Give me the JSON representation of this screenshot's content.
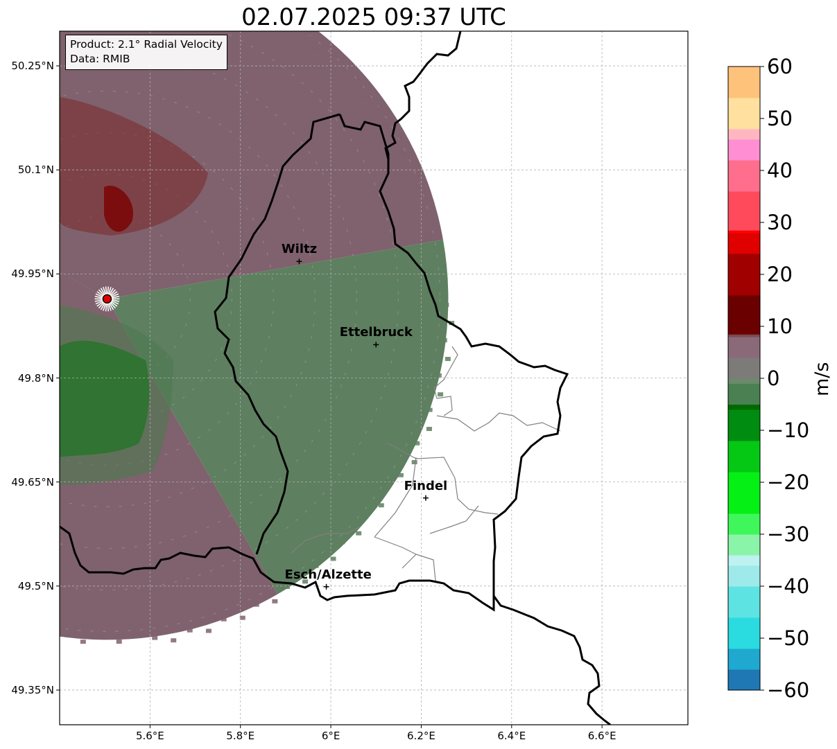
{
  "title": "02.07.2025 09:37 UTC",
  "info": {
    "product": "Product: 2.1° Radial Velocity",
    "source": "Data: RMIB"
  },
  "axes": {
    "lat_ticks": [
      {
        "value": 50.25,
        "label": "50.25°N"
      },
      {
        "value": 50.1,
        "label": "50.1°N"
      },
      {
        "value": 49.95,
        "label": "49.95°N"
      },
      {
        "value": 49.8,
        "label": "49.8°N"
      },
      {
        "value": 49.65,
        "label": "49.65°N"
      },
      {
        "value": 49.5,
        "label": "49.5°N"
      },
      {
        "value": 49.35,
        "label": "49.35°N"
      }
    ],
    "lon_ticks": [
      {
        "value": 5.6,
        "label": "5.6°E"
      },
      {
        "value": 5.8,
        "label": "5.8°E"
      },
      {
        "value": 6.0,
        "label": "6°E"
      },
      {
        "value": 6.2,
        "label": "6.2°E"
      },
      {
        "value": 6.4,
        "label": "6.4°E"
      },
      {
        "value": 6.6,
        "label": "6.6°E"
      }
    ],
    "lon_range": [
      5.4,
      6.79
    ],
    "lat_range": [
      49.3,
      50.3
    ],
    "grid": true
  },
  "radar_site": {
    "lon": 5.505,
    "lat": 49.914,
    "color": "#e00000"
  },
  "cities": [
    {
      "name": "Wiltz",
      "lon": 5.93,
      "lat": 49.968
    },
    {
      "name": "Ettelbruck",
      "lon": 6.1,
      "lat": 49.848
    },
    {
      "name": "Findel",
      "lon": 6.21,
      "lat": 49.627
    },
    {
      "name": "Esch/Alzette",
      "lon": 5.99,
      "lat": 49.499
    }
  ],
  "colorbar": {
    "label": "m/s",
    "min": -60,
    "max": 60,
    "ticks": [
      {
        "value": 60,
        "label": "60"
      },
      {
        "value": 50,
        "label": "50"
      },
      {
        "value": 40,
        "label": "40"
      },
      {
        "value": 30,
        "label": "30"
      },
      {
        "value": 20,
        "label": "20"
      },
      {
        "value": 10,
        "label": "10"
      },
      {
        "value": 0,
        "label": "0"
      },
      {
        "value": -10,
        "label": "−10"
      },
      {
        "value": -20,
        "label": "−20"
      },
      {
        "value": -30,
        "label": "−30"
      },
      {
        "value": -40,
        "label": "−40"
      },
      {
        "value": -50,
        "label": "−50"
      },
      {
        "value": -60,
        "label": "−60"
      }
    ],
    "stops": [
      {
        "v": -60,
        "c": "#1f77b4"
      },
      {
        "v": -56,
        "c": "#1fa8d0"
      },
      {
        "v": -52,
        "c": "#2adbe0"
      },
      {
        "v": -46,
        "c": "#5ee3e3"
      },
      {
        "v": -40,
        "c": "#9eeaea"
      },
      {
        "v": -36,
        "c": "#bdf2f0"
      },
      {
        "v": -34,
        "c": "#8af5a8"
      },
      {
        "v": -30,
        "c": "#3ff75a"
      },
      {
        "v": -26,
        "c": "#05f015"
      },
      {
        "v": -18,
        "c": "#04c814"
      },
      {
        "v": -12,
        "c": "#008c10"
      },
      {
        "v": -6,
        "c": "#006a00"
      },
      {
        "v": -5,
        "c": "#4b8052"
      },
      {
        "v": -1,
        "c": "#6a8a6a"
      },
      {
        "v": 0,
        "c": "#7d7a7a"
      },
      {
        "v": 4,
        "c": "#8a6a78"
      },
      {
        "v": 8,
        "c": "#7e4a52"
      },
      {
        "v": 8.5,
        "c": "#6a0000"
      },
      {
        "v": 16,
        "c": "#a00000"
      },
      {
        "v": 24,
        "c": "#e00000"
      },
      {
        "v": 28,
        "c": "#ff0000"
      },
      {
        "v": 28.5,
        "c": "#ff4a5c"
      },
      {
        "v": 36,
        "c": "#ff6e8c"
      },
      {
        "v": 42,
        "c": "#ff8ed2"
      },
      {
        "v": 46,
        "c": "#ffb6c1"
      },
      {
        "v": 48,
        "c": "#ffe09e"
      },
      {
        "v": 54,
        "c": "#ffc27a"
      },
      {
        "v": 60,
        "c": "#ff9a50"
      }
    ]
  },
  "colors": {
    "inbound_core": "#006a00",
    "inbound_light": "#5e7f60",
    "outbound_core": "#7a2828",
    "outbound_light": "#7f626d",
    "border": "#000000",
    "canton": "#808080",
    "grid": "#b0b0b0"
  }
}
